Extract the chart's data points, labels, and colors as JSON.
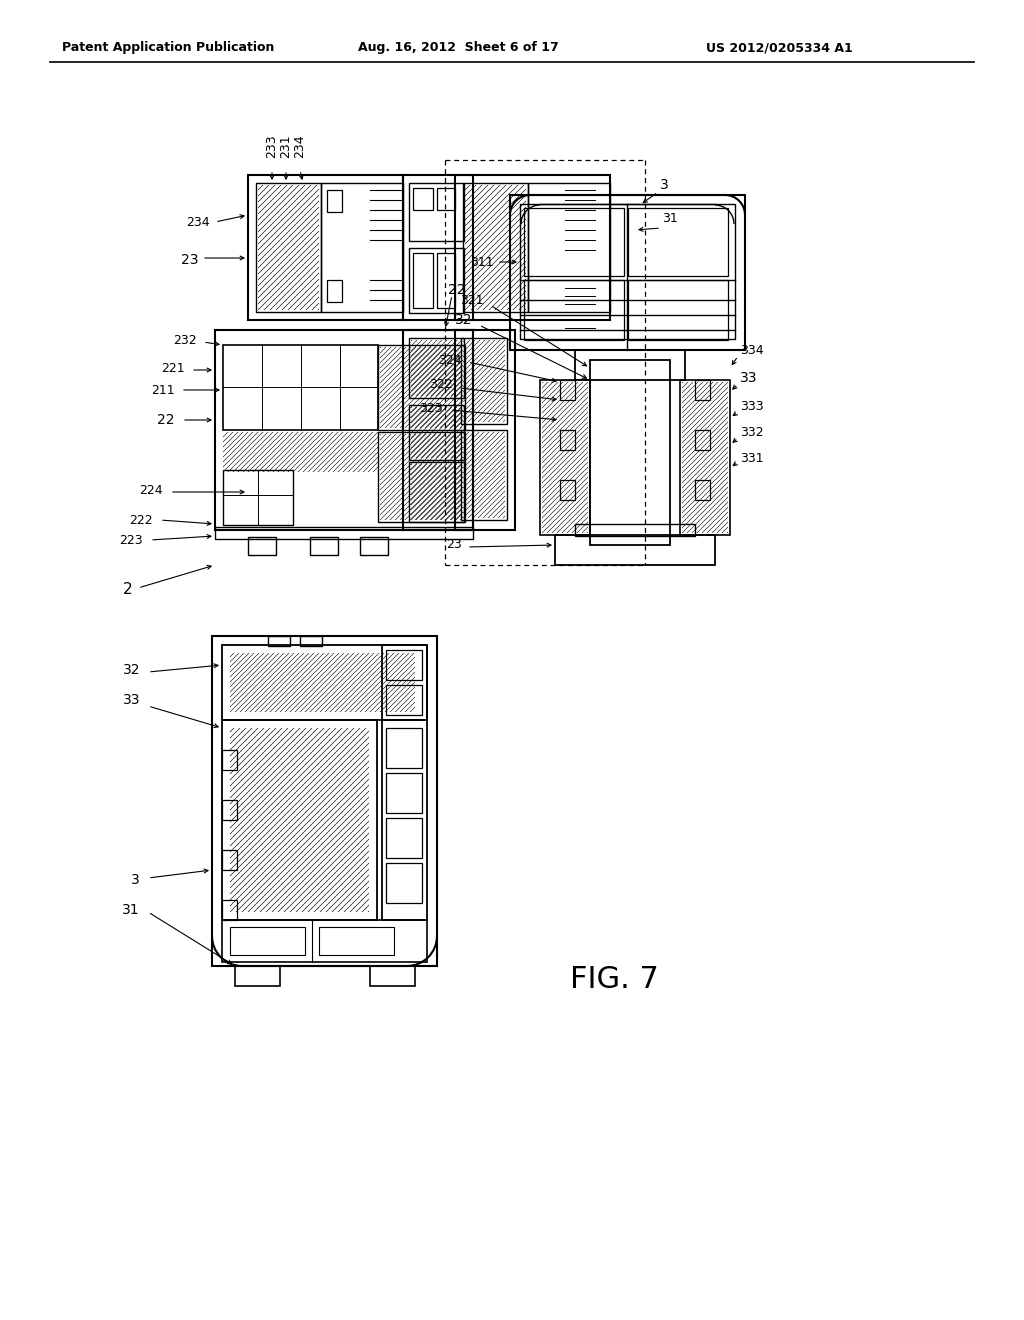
{
  "bg": "#ffffff",
  "header_left": "Patent Application Publication",
  "header_center": "Aug. 16, 2012  Sheet 6 of 17",
  "header_right": "US 2012/0205334 A1",
  "fig_label": "FIG. 7"
}
